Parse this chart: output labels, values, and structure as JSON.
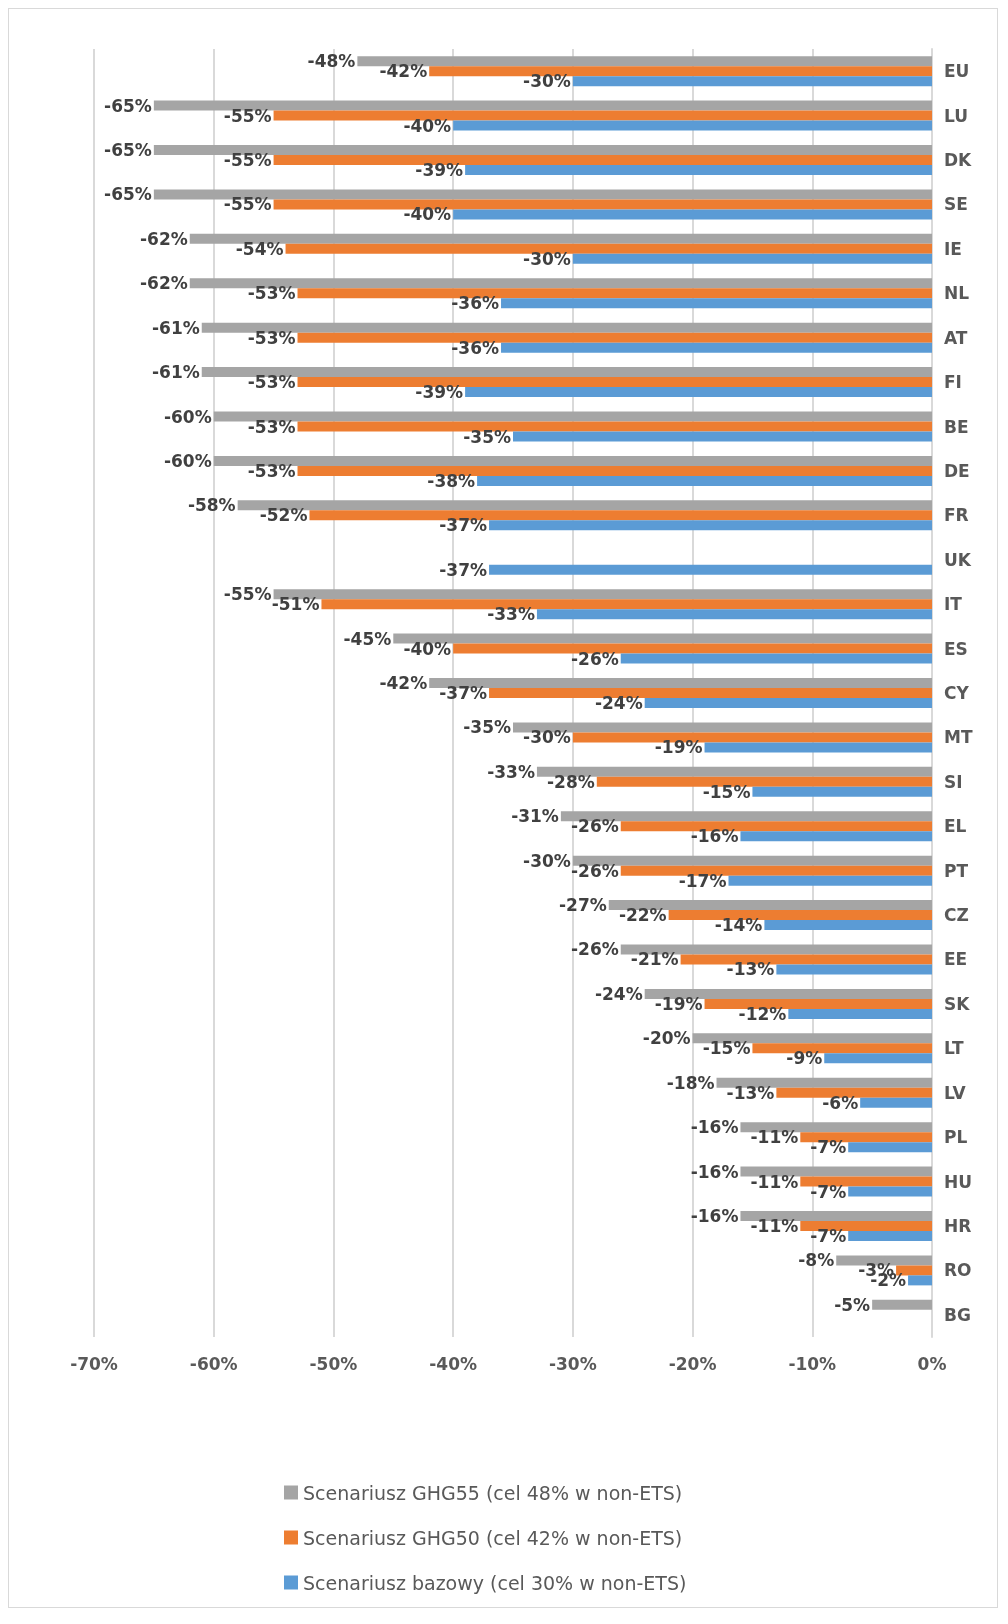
{
  "chart_data": {
    "type": "bar",
    "orientation": "horizontal",
    "categories": [
      "EU",
      "LU",
      "DK",
      "SE",
      "IE",
      "NL",
      "AT",
      "FI",
      "BE",
      "DE",
      "FR",
      "UK",
      "IT",
      "ES",
      "CY",
      "MT",
      "SI",
      "EL",
      "PT",
      "CZ",
      "EE",
      "SK",
      "LT",
      "LV",
      "PL",
      "HU",
      "HR",
      "RO",
      "BG"
    ],
    "series": [
      {
        "name": "Scenariusz GHG55 (cel 48% w non-ETS)",
        "color": "#a5a5a5",
        "values": [
          -48,
          -65,
          -65,
          -65,
          -62,
          -62,
          -61,
          -61,
          -60,
          -60,
          -58,
          null,
          -55,
          -45,
          -42,
          -35,
          -33,
          -31,
          -30,
          -27,
          -26,
          -24,
          -20,
          -18,
          -16,
          -16,
          -16,
          -8,
          -5
        ],
        "value_labels": [
          "-48%",
          "-65%",
          "-65%",
          "-65%",
          "-62%",
          "-62%",
          "-61%",
          "-61%",
          "-60%",
          "-60%",
          "-58%",
          null,
          "-55%",
          "-45%",
          "-42%",
          "-35%",
          "-33%",
          "-31%",
          "-30%",
          "-27%",
          "-26%",
          "-24%",
          "-20%",
          "-18%",
          "-16%",
          "-16%",
          "-16%",
          "-8%",
          "-5%"
        ]
      },
      {
        "name": "Scenariusz GHG50 (cel 42% w non-ETS)",
        "color": "#ed7d31",
        "values": [
          -42,
          -55,
          -55,
          -55,
          -54,
          -53,
          -53,
          -53,
          -53,
          -53,
          -52,
          null,
          -51,
          -40,
          -37,
          -30,
          -28,
          -26,
          -26,
          -22,
          -21,
          -19,
          -15,
          -13,
          -11,
          -11,
          -11,
          -3,
          null
        ],
        "value_labels": [
          "-42%",
          "-55%",
          "-55%",
          "-55%",
          "-54%",
          "-53%",
          "-53%",
          "-53%",
          "-53%",
          "-53%",
          "-52%",
          null,
          "-51%",
          "-40%",
          "-37%",
          "-30%",
          "-28%",
          "-26%",
          "-26%",
          "-22%",
          "-21%",
          "-19%",
          "-15%",
          "-13%",
          "-11%",
          "-11%",
          "-11%",
          "-3%",
          null
        ]
      },
      {
        "name": "Scenariusz bazowy (cel 30% w non-ETS)",
        "color": "#5b9bd5",
        "values": [
          -30,
          -40,
          -39,
          -40,
          -30,
          -36,
          -36,
          -39,
          -35,
          -38,
          -37,
          -37,
          -33,
          -26,
          -24,
          -19,
          -15,
          -16,
          -17,
          -14,
          -13,
          -12,
          -9,
          -6,
          -7,
          -7,
          -7,
          -2,
          0
        ],
        "value_labels": [
          "-30%",
          "-40%",
          "-39%",
          "-40%",
          "-30%",
          "-36%",
          "-36%",
          "-39%",
          "-35%",
          "-38%",
          "-37%",
          "-37%",
          "-33%",
          "-26%",
          "-24%",
          "-19%",
          "-15%",
          "-16%",
          "-17%",
          "-14%",
          "-13%",
          "-12%",
          "-9%",
          "-6%",
          "-7%",
          "-7%",
          "-7%",
          "-2%",
          null
        ]
      }
    ],
    "xlim": [
      -70,
      0
    ],
    "xticks": [
      {
        "value": -70,
        "label": "-70%"
      },
      {
        "value": -60,
        "label": "-60%"
      },
      {
        "value": -50,
        "label": "-50%"
      },
      {
        "value": -40,
        "label": "-40%"
      },
      {
        "value": -30,
        "label": "-30%"
      },
      {
        "value": -20,
        "label": "-20%"
      },
      {
        "value": -10,
        "label": "-10%"
      },
      {
        "value": 0,
        "label": "0%"
      }
    ],
    "grid": "x",
    "legend": "bottom"
  }
}
